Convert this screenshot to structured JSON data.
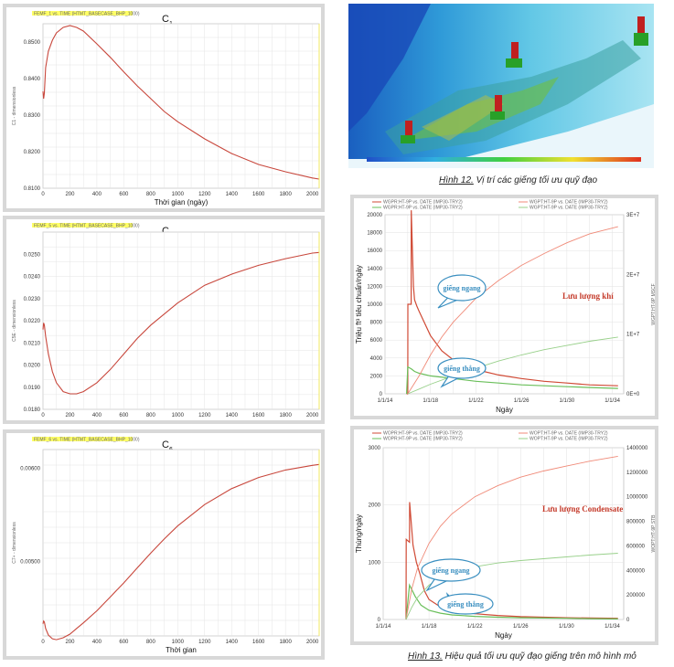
{
  "chart_data": [
    {
      "id": "c1",
      "type": "line",
      "title": "C1",
      "title_sub": "1",
      "legend": "FEMF_1 vs. TIME (HTMT_BASECASE_BHP_1000)",
      "ylabel": "C1 - dimensionless",
      "xlabel": "Thời gian (ngày)",
      "xlim": [
        0,
        2050
      ],
      "ylim": [
        0.81,
        0.855
      ],
      "xticks": [
        "0",
        "200",
        "400",
        "600",
        "800",
        "1000",
        "1200",
        "1400",
        "1600",
        "1800",
        "2000"
      ],
      "yticks": [
        "0.8100",
        "0.8200",
        "0.8300",
        "0.8400",
        "0.8500"
      ],
      "x": [
        0,
        5,
        10,
        20,
        40,
        70,
        100,
        150,
        200,
        250,
        300,
        400,
        500,
        600,
        700,
        800,
        900,
        1000,
        1200,
        1400,
        1600,
        1800,
        2000,
        2050
      ],
      "y": [
        0.8365,
        0.8345,
        0.836,
        0.843,
        0.8475,
        0.8505,
        0.8525,
        0.854,
        0.8545,
        0.854,
        0.853,
        0.8495,
        0.8458,
        0.8418,
        0.838,
        0.8345,
        0.831,
        0.8282,
        0.8235,
        0.8195,
        0.8165,
        0.8145,
        0.8128,
        0.8125
      ]
    },
    {
      "id": "c5",
      "type": "line",
      "title": "C5",
      "title_sub": "5",
      "legend": "FEMF_5 vs. TIME (HTMT_BASECASE_BHP_1000)",
      "ylabel": "C5E - dimensionless",
      "xlabel": "Thời gian (ngày)",
      "xlim": [
        0,
        2050
      ],
      "ylim": [
        0.018,
        0.026
      ],
      "xticks": [
        "0",
        "200",
        "400",
        "600",
        "800",
        "1000",
        "1200",
        "1400",
        "1600",
        "1800",
        "2000"
      ],
      "yticks": [
        "0.0180",
        "0.0190",
        "0.0200",
        "0.0210",
        "0.0220",
        "0.0230",
        "0.0240",
        "0.0250"
      ],
      "x": [
        0,
        5,
        10,
        20,
        40,
        70,
        100,
        150,
        200,
        250,
        300,
        400,
        500,
        600,
        700,
        800,
        900,
        1000,
        1200,
        1400,
        1600,
        1800,
        2000,
        2050
      ],
      "y": [
        0.0216,
        0.0219,
        0.0218,
        0.0213,
        0.0205,
        0.0197,
        0.0192,
        0.0188,
        0.0187,
        0.0187,
        0.0188,
        0.0192,
        0.0198,
        0.0205,
        0.0212,
        0.0218,
        0.0223,
        0.0228,
        0.0236,
        0.0241,
        0.0245,
        0.0248,
        0.02505,
        0.02508
      ]
    },
    {
      "id": "c6",
      "type": "line",
      "title": "C6",
      "title_sub": "6",
      "legend": "FEMF_6 vs. TIME (HTMT_BASECASE_BHP_1000)",
      "ylabel": "C7+ - dimensionless",
      "xlabel": "Thời gian",
      "xlim": [
        0,
        2050
      ],
      "ylim": [
        0.0042,
        0.0062
      ],
      "xticks": [
        "0",
        "200",
        "400",
        "600",
        "800",
        "1000",
        "1200",
        "1400",
        "1600",
        "1800",
        "2000"
      ],
      "yticks": [
        "0.00500",
        "0.00600"
      ],
      "x": [
        0,
        5,
        10,
        20,
        40,
        70,
        100,
        150,
        200,
        250,
        300,
        400,
        500,
        600,
        700,
        800,
        900,
        1000,
        1200,
        1400,
        1600,
        1800,
        2000,
        2050
      ],
      "y": [
        0.00433,
        0.00436,
        0.00435,
        0.00428,
        0.00421,
        0.00417,
        0.00416,
        0.00418,
        0.00422,
        0.00428,
        0.00434,
        0.00447,
        0.00462,
        0.00477,
        0.00493,
        0.00509,
        0.00524,
        0.00538,
        0.00561,
        0.00578,
        0.0059,
        0.00598,
        0.00603,
        0.00604
      ]
    },
    {
      "id": "gas",
      "type": "line",
      "legend_lines": [
        "WGPR:HT-9P vs. DATE (IMP30-TRY2)",
        "WGPR:HT-9P vs. DATE (IMP30-TRY2)",
        "WGPT:HT-9P vs. DATE (IMP30-TRY2)",
        "WGPT:HT-9P vs. DATE (IMP30-TRY2)"
      ],
      "ylabel": "Triệu ft³ tiêu chuẩn/ngày",
      "y2label": "WGPT:HT-9P MSCF",
      "xlabel": "Ngày",
      "xlim": [
        2014,
        2035
      ],
      "ylim": [
        0,
        20000
      ],
      "y2lim": [
        0,
        30000000
      ],
      "xticks": [
        "1/1/14",
        "1/1/18",
        "1/1/22",
        "1/1/26",
        "1/1/30",
        "1/1/34"
      ],
      "yticks": [
        "0",
        "2000",
        "4000",
        "6000",
        "8000",
        "10000",
        "12000",
        "14000",
        "16000",
        "18000",
        "20000"
      ],
      "y2ticks": [
        "0E+0",
        "1E+7",
        "2E+7",
        "3E+7"
      ],
      "series": [
        {
          "name": "giếng ngang",
          "role": "rate",
          "color": "#d04a35",
          "x": [
            2015.9,
            2016.0,
            2016.01,
            2016.3,
            2016.31,
            2016.5,
            2016.6,
            2016.8,
            2017,
            2018,
            2019,
            2020,
            2022,
            2024,
            2026,
            2028,
            2030,
            2032,
            2034.5
          ],
          "y": [
            0,
            0,
            10000,
            10000,
            20500,
            12000,
            10500,
            9800,
            9200,
            6500,
            4800,
            3800,
            2700,
            2100,
            1700,
            1400,
            1200,
            1000,
            900
          ]
        },
        {
          "name": "giếng thẳng",
          "role": "rate",
          "color": "#6abf5a",
          "x": [
            2015.9,
            2016.0,
            2016.3,
            2016.6,
            2017,
            2018,
            2020,
            2022,
            2024,
            2026,
            2028,
            2030,
            2032,
            2034.5
          ],
          "y": [
            0,
            3000,
            2800,
            2500,
            2300,
            2000,
            1700,
            1400,
            1200,
            1000,
            900,
            800,
            700,
            600
          ]
        },
        {
          "name": "giếng ngang",
          "role": "cumulative",
          "color": "#f08a78",
          "x": [
            2016.0,
            2017,
            2018,
            2019,
            2020,
            2022,
            2024,
            2026,
            2028,
            2030,
            2032,
            2034.5
          ],
          "y": [
            0,
            3000000,
            6500000,
            9500000,
            12000000,
            16000000,
            19000000,
            21500000,
            23500000,
            25300000,
            26800000,
            28000000
          ]
        },
        {
          "name": "giếng thẳng",
          "role": "cumulative",
          "color": "#98d08a",
          "x": [
            2016.0,
            2017,
            2018,
            2020,
            2022,
            2024,
            2026,
            2028,
            2030,
            2032,
            2034.5
          ],
          "y": [
            0,
            800000,
            1600000,
            3000000,
            4300000,
            5500000,
            6500000,
            7400000,
            8100000,
            8800000,
            9500000
          ]
        }
      ],
      "annotations": {
        "horizontal": "giếng ngang",
        "vertical": "giếng thẳng",
        "label": "Lưu lượng khí"
      }
    },
    {
      "id": "cond",
      "type": "line",
      "legend_lines": [
        "WOPR:HT-9P vs. DATE (IMP30-TRY2)",
        "WOPR:HT-9P vs. DATE (IMP30-TRY2)",
        "WOPT:HT-9P vs. DATE (IMP30-TRY2)",
        "WOPT:HT-9P vs. DATE (IMP30-TRY2)"
      ],
      "ylabel": "Thùng/ngày",
      "y2label": "WOPT:HT-9P STB",
      "xlabel": "Ngày",
      "xlim": [
        2014,
        2035
      ],
      "ylim": [
        0,
        3000
      ],
      "y2lim": [
        0,
        1400000
      ],
      "xticks": [
        "1/1/14",
        "1/1/18",
        "1/1/22",
        "1/1/26",
        "1/1/30",
        "1/1/34"
      ],
      "yticks": [
        "0",
        "1000",
        "2000",
        "3000"
      ],
      "y2ticks": [
        "0",
        "200000",
        "400000",
        "600000",
        "800000",
        "1000000",
        "1200000",
        "1400000"
      ],
      "series": [
        {
          "name": "giếng ngang",
          "role": "rate",
          "color": "#d04a35",
          "x": [
            2016.0,
            2016.01,
            2016.3,
            2016.31,
            2016.6,
            2016.9,
            2017.2,
            2017.6,
            2018,
            2019,
            2020,
            2022,
            2024,
            2026,
            2028,
            2030,
            2032,
            2034.5
          ],
          "y": [
            0,
            1400,
            1350,
            2050,
            1300,
            1000,
            800,
            500,
            350,
            220,
            150,
            100,
            70,
            50,
            40,
            30,
            25,
            20
          ]
        },
        {
          "name": "giếng thẳng",
          "role": "rate",
          "color": "#6abf5a",
          "x": [
            2016.0,
            2016.3,
            2016.8,
            2017.3,
            2018,
            2019,
            2020,
            2022,
            2024,
            2026,
            2028,
            2030,
            2032,
            2034.5
          ],
          "y": [
            0,
            600,
            400,
            250,
            160,
            110,
            80,
            55,
            40,
            30,
            25,
            20,
            15,
            10
          ]
        },
        {
          "name": "giếng ngang",
          "role": "cumulative",
          "color": "#f08a78",
          "x": [
            2016.0,
            2016.5,
            2017,
            2018,
            2019,
            2020,
            2022,
            2024,
            2026,
            2028,
            2030,
            2032,
            2034.5
          ],
          "y": [
            0,
            250000,
            420000,
            620000,
            760000,
            860000,
            1000000,
            1090000,
            1160000,
            1210000,
            1250000,
            1290000,
            1330000
          ]
        },
        {
          "name": "giếng thẳng",
          "role": "cumulative",
          "color": "#98d08a",
          "x": [
            2016.0,
            2016.5,
            2017,
            2018,
            2019,
            2020,
            2022,
            2024,
            2026,
            2028,
            2030,
            2032,
            2034.5
          ],
          "y": [
            0,
            100000,
            180000,
            280000,
            340000,
            380000,
            430000,
            460000,
            480000,
            495000,
            510000,
            525000,
            540000
          ]
        }
      ],
      "annotations": {
        "horizontal": "giếng ngang",
        "vertical": "giếng thẳng",
        "label": "Lưu lượng Condensate"
      }
    }
  ],
  "captions": {
    "fig12_label": "Hình 12.",
    "fig12_text": " Vị trí các giếng tối ưu quỹ đạo",
    "fig13_label": "Hình 13.",
    "fig13_text": " Hiệu quả tối ưu quỹ đạo giếng trên mô hình mỏ"
  },
  "colors": {
    "curve": "#c8473c",
    "grid": "#d6d6d6",
    "panel_border": "#d8d8d8"
  }
}
